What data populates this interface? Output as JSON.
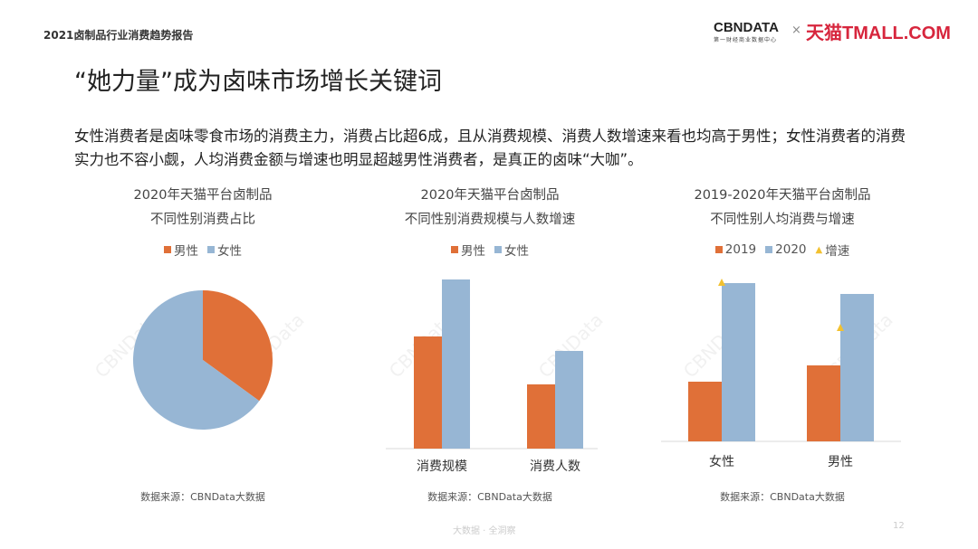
{
  "header": {
    "report_title": "2021卤制品行业消费趋势报告",
    "logo_cbn": "CBNDATA",
    "logo_cbn_sub": "第一财经商业数据中心",
    "times": "×",
    "logo_tmall": "天猫TMALL.COM"
  },
  "title": "“她力量”成为卤味市场增长关键词",
  "description": "女性消费者是卤味零食市场的消费主力，消费占比超6成，且从消费规模、消费人数增速来看也均高于男性；女性消费者的消费实力也不容小觑，人均消费金额与增速也明显超越男性消费者，是真正的卤味“大咖”。",
  "watermark": "CBNData",
  "colors": {
    "orange": "#E07038",
    "blue": "#97B6D4",
    "yellow": "#F2C130"
  },
  "chart_data": [
    {
      "type": "pie",
      "title_line1": "2020年天猫平台卤制品",
      "title_line2": "不同性别消费占比",
      "legend": [
        "男性",
        "女性"
      ],
      "values": [
        35,
        65
      ],
      "source": "数据来源：CBNData大数据"
    },
    {
      "type": "bar",
      "title_line1": "2020年天猫平台卤制品",
      "title_line2": "不同性别消费规模与人数增速",
      "categories": [
        "消费规模",
        "消费人数"
      ],
      "series": [
        {
          "name": "男性",
          "values": [
            124,
            71
          ]
        },
        {
          "name": "女性",
          "values": [
            187,
            108
          ]
        }
      ],
      "ylim": [
        0,
        200
      ],
      "source": "数据来源：CBNData大数据"
    },
    {
      "type": "bar",
      "title_line1": "2019-2020年天猫平台卤制品",
      "title_line2": "不同性别人均消费与增速",
      "categories": [
        "女性",
        "男性"
      ],
      "series": [
        {
          "name": "2019",
          "values": [
            66,
            84
          ]
        },
        {
          "name": "2020",
          "values": [
            175,
            163
          ]
        }
      ],
      "markers": {
        "name": "增速",
        "values": [
          175,
          125
        ]
      },
      "ylim": [
        0,
        200
      ],
      "source": "数据来源：CBNData大数据"
    }
  ],
  "footer": {
    "slogan": "大数据 · 全洞察",
    "page": "12"
  }
}
